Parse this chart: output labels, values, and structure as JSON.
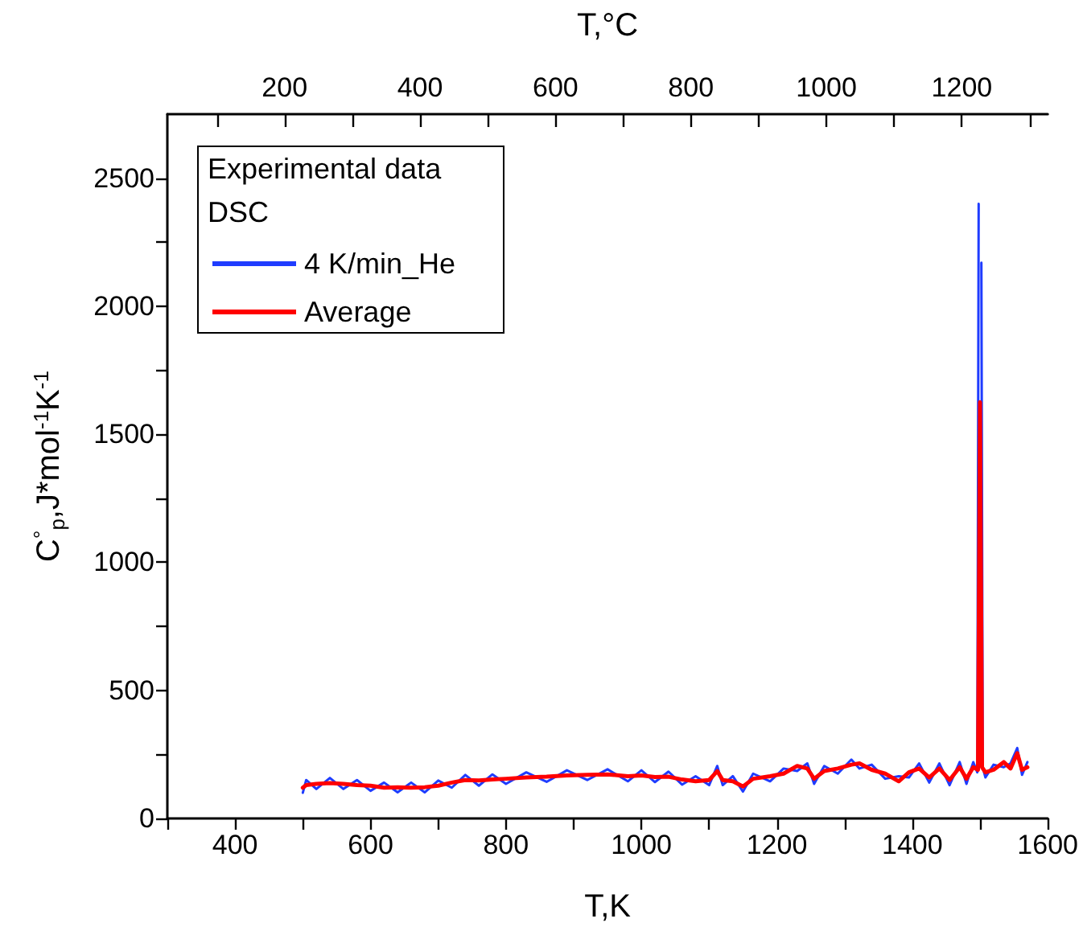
{
  "chart_data": {
    "type": "line",
    "xlabel": "T,K",
    "x2label": "T,°C",
    "ylabel": "C$^{°}$$_{p}$,J*mol$^{-1}$K$^{-1}$",
    "legend_title": "Experimental data",
    "annotations": [
      "DSC"
    ],
    "legend": "top left",
    "grid": false,
    "marker": "none",
    "line_style": "solid",
    "xlim": [
      300,
      1600
    ],
    "xticks": [
      {
        "value": 300,
        "label": null
      },
      400,
      {
        "value": 500,
        "label": null
      },
      600,
      {
        "value": 700,
        "label": null
      },
      800,
      {
        "value": 900,
        "label": null
      },
      1000,
      {
        "value": 1100,
        "label": null
      },
      1200,
      {
        "value": 1300,
        "label": null
      },
      1400,
      {
        "value": 1500,
        "label": null
      },
      1600
    ],
    "x2lim": [
      26.85,
      1326.85
    ],
    "x2ticks": [
      {
        "value": 100,
        "label": null
      },
      200,
      {
        "value": 300,
        "label": null
      },
      400,
      {
        "value": 500,
        "label": null
      },
      600,
      {
        "value": 700,
        "label": null
      },
      800,
      {
        "value": 900,
        "label": null
      },
      1000,
      {
        "value": 1100,
        "label": null
      },
      1200,
      {
        "value": 1300,
        "label": null
      }
    ],
    "ylim": [
      0,
      2750
    ],
    "yticks": [
      0,
      {
        "value": 250,
        "label": null
      },
      500,
      {
        "value": 750,
        "label": null
      },
      1000,
      {
        "value": 1250,
        "label": null
      },
      1500,
      {
        "value": 1750,
        "label": null
      },
      2000,
      {
        "value": 2250,
        "label": null
      },
      2500
    ],
    "series": [
      {
        "name": "4 K/min_He",
        "color": "#1f3cff",
        "x": [
          500,
          505,
          520,
          540,
          560,
          580,
          600,
          620,
          640,
          660,
          680,
          700,
          720,
          740,
          760,
          780,
          800,
          830,
          860,
          890,
          920,
          950,
          980,
          1000,
          1020,
          1040,
          1060,
          1080,
          1100,
          1112,
          1120,
          1135,
          1150,
          1165,
          1190,
          1210,
          1230,
          1245,
          1255,
          1270,
          1290,
          1310,
          1322,
          1340,
          1360,
          1380,
          1395,
          1410,
          1425,
          1440,
          1455,
          1470,
          1480,
          1490,
          1496,
          1498,
          1500,
          1502,
          1504,
          1508,
          1520,
          1535,
          1545,
          1555,
          1562,
          1570
        ],
        "values": [
          100,
          150,
          115,
          158,
          115,
          150,
          108,
          140,
          102,
          140,
          102,
          148,
          120,
          170,
          128,
          172,
          135,
          180,
          143,
          188,
          150,
          192,
          145,
          188,
          142,
          183,
          132,
          165,
          130,
          205,
          130,
          165,
          105,
          175,
          145,
          195,
          185,
          215,
          135,
          205,
          175,
          230,
          195,
          210,
          155,
          165,
          160,
          215,
          140,
          215,
          130,
          220,
          135,
          220,
          180,
          2400,
          null,
          2170,
          200,
          160,
          210,
          200,
          215,
          275,
          170,
          220
        ]
      },
      {
        "name": "Average",
        "color": "#ff0000",
        "x": [
          500,
          505,
          520,
          540,
          560,
          580,
          600,
          620,
          640,
          660,
          680,
          700,
          720,
          740,
          760,
          780,
          800,
          830,
          860,
          890,
          920,
          950,
          980,
          1000,
          1020,
          1040,
          1060,
          1080,
          1100,
          1112,
          1120,
          1135,
          1150,
          1165,
          1190,
          1210,
          1230,
          1245,
          1255,
          1270,
          1290,
          1310,
          1322,
          1340,
          1360,
          1380,
          1395,
          1410,
          1425,
          1440,
          1455,
          1470,
          1480,
          1490,
          1497,
          1500,
          1503,
          1508,
          1520,
          1535,
          1545,
          1555,
          1562,
          1570
        ],
        "values": [
          120,
          130,
          135,
          138,
          135,
          130,
          128,
          120,
          122,
          120,
          122,
          128,
          140,
          150,
          148,
          152,
          155,
          160,
          163,
          168,
          170,
          172,
          165,
          168,
          162,
          163,
          152,
          145,
          150,
          185,
          150,
          145,
          125,
          155,
          165,
          175,
          205,
          195,
          155,
          185,
          195,
          210,
          215,
          190,
          175,
          145,
          180,
          195,
          160,
          195,
          150,
          200,
          155,
          200,
          190,
          1625,
          200,
          180,
          190,
          220,
          195,
          255,
          190,
          200
        ]
      }
    ]
  }
}
